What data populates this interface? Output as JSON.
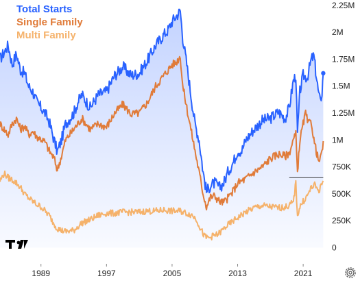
{
  "chart_data": {
    "type": "line",
    "title": "",
    "xlabel": "",
    "ylabel": "",
    "xlim": [
      1984.0,
      2023.5
    ],
    "ylim": [
      -150000,
      2300000
    ],
    "x_ticks": [
      "1989",
      "1997",
      "2005",
      "2013",
      "2021"
    ],
    "y_ticks": [
      "2.25M",
      "2M",
      "1.75M",
      "1.5M",
      "1.25M",
      "1M",
      "750K",
      "500K",
      "250K",
      "0"
    ],
    "y_tick_values": [
      2250000,
      2000000,
      1750000,
      1500000,
      1250000,
      1000000,
      750000,
      500000,
      250000,
      0
    ],
    "series": [
      {
        "name": "Total Starts",
        "color": "#2962ff",
        "points": [
          [
            1984.0,
            1750000
          ],
          [
            1985.0,
            1880000
          ],
          [
            1985.5,
            1700000
          ],
          [
            1986.0,
            1800000
          ],
          [
            1986.5,
            1650000
          ],
          [
            1987.0,
            1620000
          ],
          [
            1987.5,
            1500000
          ],
          [
            1988.0,
            1450000
          ],
          [
            1988.5,
            1350000
          ],
          [
            1989.0,
            1300000
          ],
          [
            1989.5,
            1250000
          ],
          [
            1990.0,
            1170000
          ],
          [
            1990.6,
            1000000
          ],
          [
            1991.0,
            890000
          ],
          [
            1991.5,
            1000000
          ],
          [
            1992.0,
            1150000
          ],
          [
            1993.0,
            1250000
          ],
          [
            1993.5,
            1350000
          ],
          [
            1994.0,
            1420000
          ],
          [
            1995.0,
            1300000
          ],
          [
            1996.0,
            1420000
          ],
          [
            1997.0,
            1450000
          ],
          [
            1998.0,
            1600000
          ],
          [
            1999.0,
            1680000
          ],
          [
            2000.0,
            1600000
          ],
          [
            2001.0,
            1620000
          ],
          [
            2002.0,
            1740000
          ],
          [
            2003.0,
            1880000
          ],
          [
            2004.0,
            1980000
          ],
          [
            2004.5,
            2020000
          ],
          [
            2005.0,
            2100000
          ],
          [
            2005.5,
            2150000
          ],
          [
            2006.0,
            2200000
          ],
          [
            2006.3,
            1950000
          ],
          [
            2006.8,
            1700000
          ],
          [
            2007.3,
            1420000
          ],
          [
            2007.8,
            1150000
          ],
          [
            2008.3,
            1000000
          ],
          [
            2008.8,
            700000
          ],
          [
            2009.2,
            520000
          ],
          [
            2009.7,
            580000
          ],
          [
            2010.2,
            600000
          ],
          [
            2010.8,
            560000
          ],
          [
            2011.3,
            600000
          ],
          [
            2011.8,
            700000
          ],
          [
            2012.5,
            800000
          ],
          [
            2013.0,
            900000
          ],
          [
            2013.5,
            900000
          ],
          [
            2014.0,
            1000000
          ],
          [
            2015.0,
            1100000
          ],
          [
            2016.0,
            1180000
          ],
          [
            2017.0,
            1200000
          ],
          [
            2018.0,
            1260000
          ],
          [
            2018.8,
            1200000
          ],
          [
            2019.3,
            1300000
          ],
          [
            2019.8,
            1550000
          ],
          [
            2020.1,
            1600000
          ],
          [
            2020.3,
            1050000
          ],
          [
            2020.6,
            1450000
          ],
          [
            2021.0,
            1600000
          ],
          [
            2021.5,
            1580000
          ],
          [
            2022.0,
            1750000
          ],
          [
            2022.3,
            1780000
          ],
          [
            2022.6,
            1600000
          ],
          [
            2022.9,
            1420000
          ],
          [
            2023.1,
            1350000
          ],
          [
            2023.3,
            1450000
          ],
          [
            2023.45,
            1620000
          ]
        ]
      },
      {
        "name": "Single Family",
        "color": "#e07b39",
        "points": [
          [
            1984.0,
            1150000
          ],
          [
            1985.0,
            1050000
          ],
          [
            1985.5,
            1150000
          ],
          [
            1986.0,
            1200000
          ],
          [
            1986.5,
            1100000
          ],
          [
            1987.0,
            1130000
          ],
          [
            1987.5,
            1050000
          ],
          [
            1988.0,
            1080000
          ],
          [
            1988.5,
            1030000
          ],
          [
            1989.0,
            1010000
          ],
          [
            1989.5,
            980000
          ],
          [
            1990.0,
            900000
          ],
          [
            1990.6,
            830000
          ],
          [
            1991.0,
            720000
          ],
          [
            1991.5,
            850000
          ],
          [
            1992.0,
            1000000
          ],
          [
            1993.0,
            1100000
          ],
          [
            1993.5,
            1150000
          ],
          [
            1994.0,
            1200000
          ],
          [
            1995.0,
            1100000
          ],
          [
            1996.0,
            1150000
          ],
          [
            1997.0,
            1120000
          ],
          [
            1998.0,
            1250000
          ],
          [
            1999.0,
            1330000
          ],
          [
            2000.0,
            1240000
          ],
          [
            2001.0,
            1250000
          ],
          [
            2002.0,
            1350000
          ],
          [
            2003.0,
            1500000
          ],
          [
            2004.0,
            1600000
          ],
          [
            2004.5,
            1650000
          ],
          [
            2005.0,
            1700000
          ],
          [
            2005.5,
            1720000
          ],
          [
            2006.0,
            1780000
          ],
          [
            2006.3,
            1500000
          ],
          [
            2006.8,
            1300000
          ],
          [
            2007.3,
            1100000
          ],
          [
            2007.8,
            900000
          ],
          [
            2008.3,
            700000
          ],
          [
            2008.8,
            500000
          ],
          [
            2009.2,
            380000
          ],
          [
            2009.7,
            470000
          ],
          [
            2010.2,
            480000
          ],
          [
            2010.8,
            430000
          ],
          [
            2011.3,
            420000
          ],
          [
            2011.8,
            460000
          ],
          [
            2012.5,
            530000
          ],
          [
            2013.0,
            600000
          ],
          [
            2013.5,
            620000
          ],
          [
            2014.0,
            640000
          ],
          [
            2015.0,
            700000
          ],
          [
            2016.0,
            750000
          ],
          [
            2017.0,
            830000
          ],
          [
            2018.0,
            870000
          ],
          [
            2018.8,
            850000
          ],
          [
            2019.3,
            880000
          ],
          [
            2019.8,
            1000000
          ],
          [
            2020.1,
            1050000
          ],
          [
            2020.3,
            700000
          ],
          [
            2020.6,
            1000000
          ],
          [
            2021.0,
            1150000
          ],
          [
            2021.3,
            1250000
          ],
          [
            2021.6,
            1150000
          ],
          [
            2022.0,
            1170000
          ],
          [
            2022.3,
            1000000
          ],
          [
            2022.6,
            900000
          ],
          [
            2022.9,
            800000
          ],
          [
            2023.1,
            820000
          ],
          [
            2023.3,
            900000
          ],
          [
            2023.45,
            990000
          ]
        ]
      },
      {
        "name": "Multi Family",
        "color": "#f5b26b",
        "points": [
          [
            1984.0,
            620000
          ],
          [
            1984.5,
            690000
          ],
          [
            1985.0,
            650000
          ],
          [
            1985.5,
            630000
          ],
          [
            1986.0,
            600000
          ],
          [
            1986.5,
            560000
          ],
          [
            1987.0,
            500000
          ],
          [
            1987.5,
            460000
          ],
          [
            1988.0,
            430000
          ],
          [
            1988.5,
            400000
          ],
          [
            1989.0,
            380000
          ],
          [
            1989.5,
            340000
          ],
          [
            1990.0,
            300000
          ],
          [
            1990.6,
            220000
          ],
          [
            1991.0,
            180000
          ],
          [
            1991.5,
            160000
          ],
          [
            1992.0,
            150000
          ],
          [
            1993.0,
            160000
          ],
          [
            1994.0,
            230000
          ],
          [
            1995.0,
            260000
          ],
          [
            1996.0,
            300000
          ],
          [
            1997.0,
            320000
          ],
          [
            1998.0,
            320000
          ],
          [
            1999.0,
            330000
          ],
          [
            2000.0,
            330000
          ],
          [
            2001.0,
            330000
          ],
          [
            2002.0,
            340000
          ],
          [
            2003.0,
            340000
          ],
          [
            2004.0,
            350000
          ],
          [
            2005.0,
            340000
          ],
          [
            2006.0,
            340000
          ],
          [
            2006.8,
            320000
          ],
          [
            2007.5,
            300000
          ],
          [
            2008.0,
            260000
          ],
          [
            2008.5,
            170000
          ],
          [
            2009.0,
            100000
          ],
          [
            2009.5,
            90000
          ],
          [
            2010.0,
            110000
          ],
          [
            2010.5,
            120000
          ],
          [
            2011.0,
            150000
          ],
          [
            2011.5,
            190000
          ],
          [
            2012.0,
            220000
          ],
          [
            2013.0,
            280000
          ],
          [
            2014.0,
            330000
          ],
          [
            2015.0,
            370000
          ],
          [
            2016.0,
            390000
          ],
          [
            2017.0,
            380000
          ],
          [
            2018.0,
            370000
          ],
          [
            2019.0,
            380000
          ],
          [
            2019.8,
            420000
          ],
          [
            2020.1,
            600000
          ],
          [
            2020.3,
            300000
          ],
          [
            2020.6,
            380000
          ],
          [
            2021.0,
            430000
          ],
          [
            2021.5,
            480000
          ],
          [
            2022.0,
            560000
          ],
          [
            2022.4,
            580000
          ],
          [
            2022.7,
            550000
          ],
          [
            2023.0,
            530000
          ],
          [
            2023.2,
            580000
          ],
          [
            2023.45,
            620000
          ]
        ]
      }
    ],
    "reference_line": {
      "value": 650000,
      "x_start": 2019.3,
      "x_end": 2023.45,
      "color": "#333333"
    },
    "area_fill": {
      "series": "Total Starts",
      "color": "#2962ff"
    },
    "grid": false,
    "legend_position": "top-left"
  },
  "legend": [
    {
      "label": "Total Starts",
      "color": "#2962ff"
    },
    {
      "label": "Single Family",
      "color": "#e07b39"
    },
    {
      "label": "Multi Family",
      "color": "#f5b26b"
    }
  ],
  "logo_name": "tradingview-logo",
  "settings_icon": "gear-icon"
}
